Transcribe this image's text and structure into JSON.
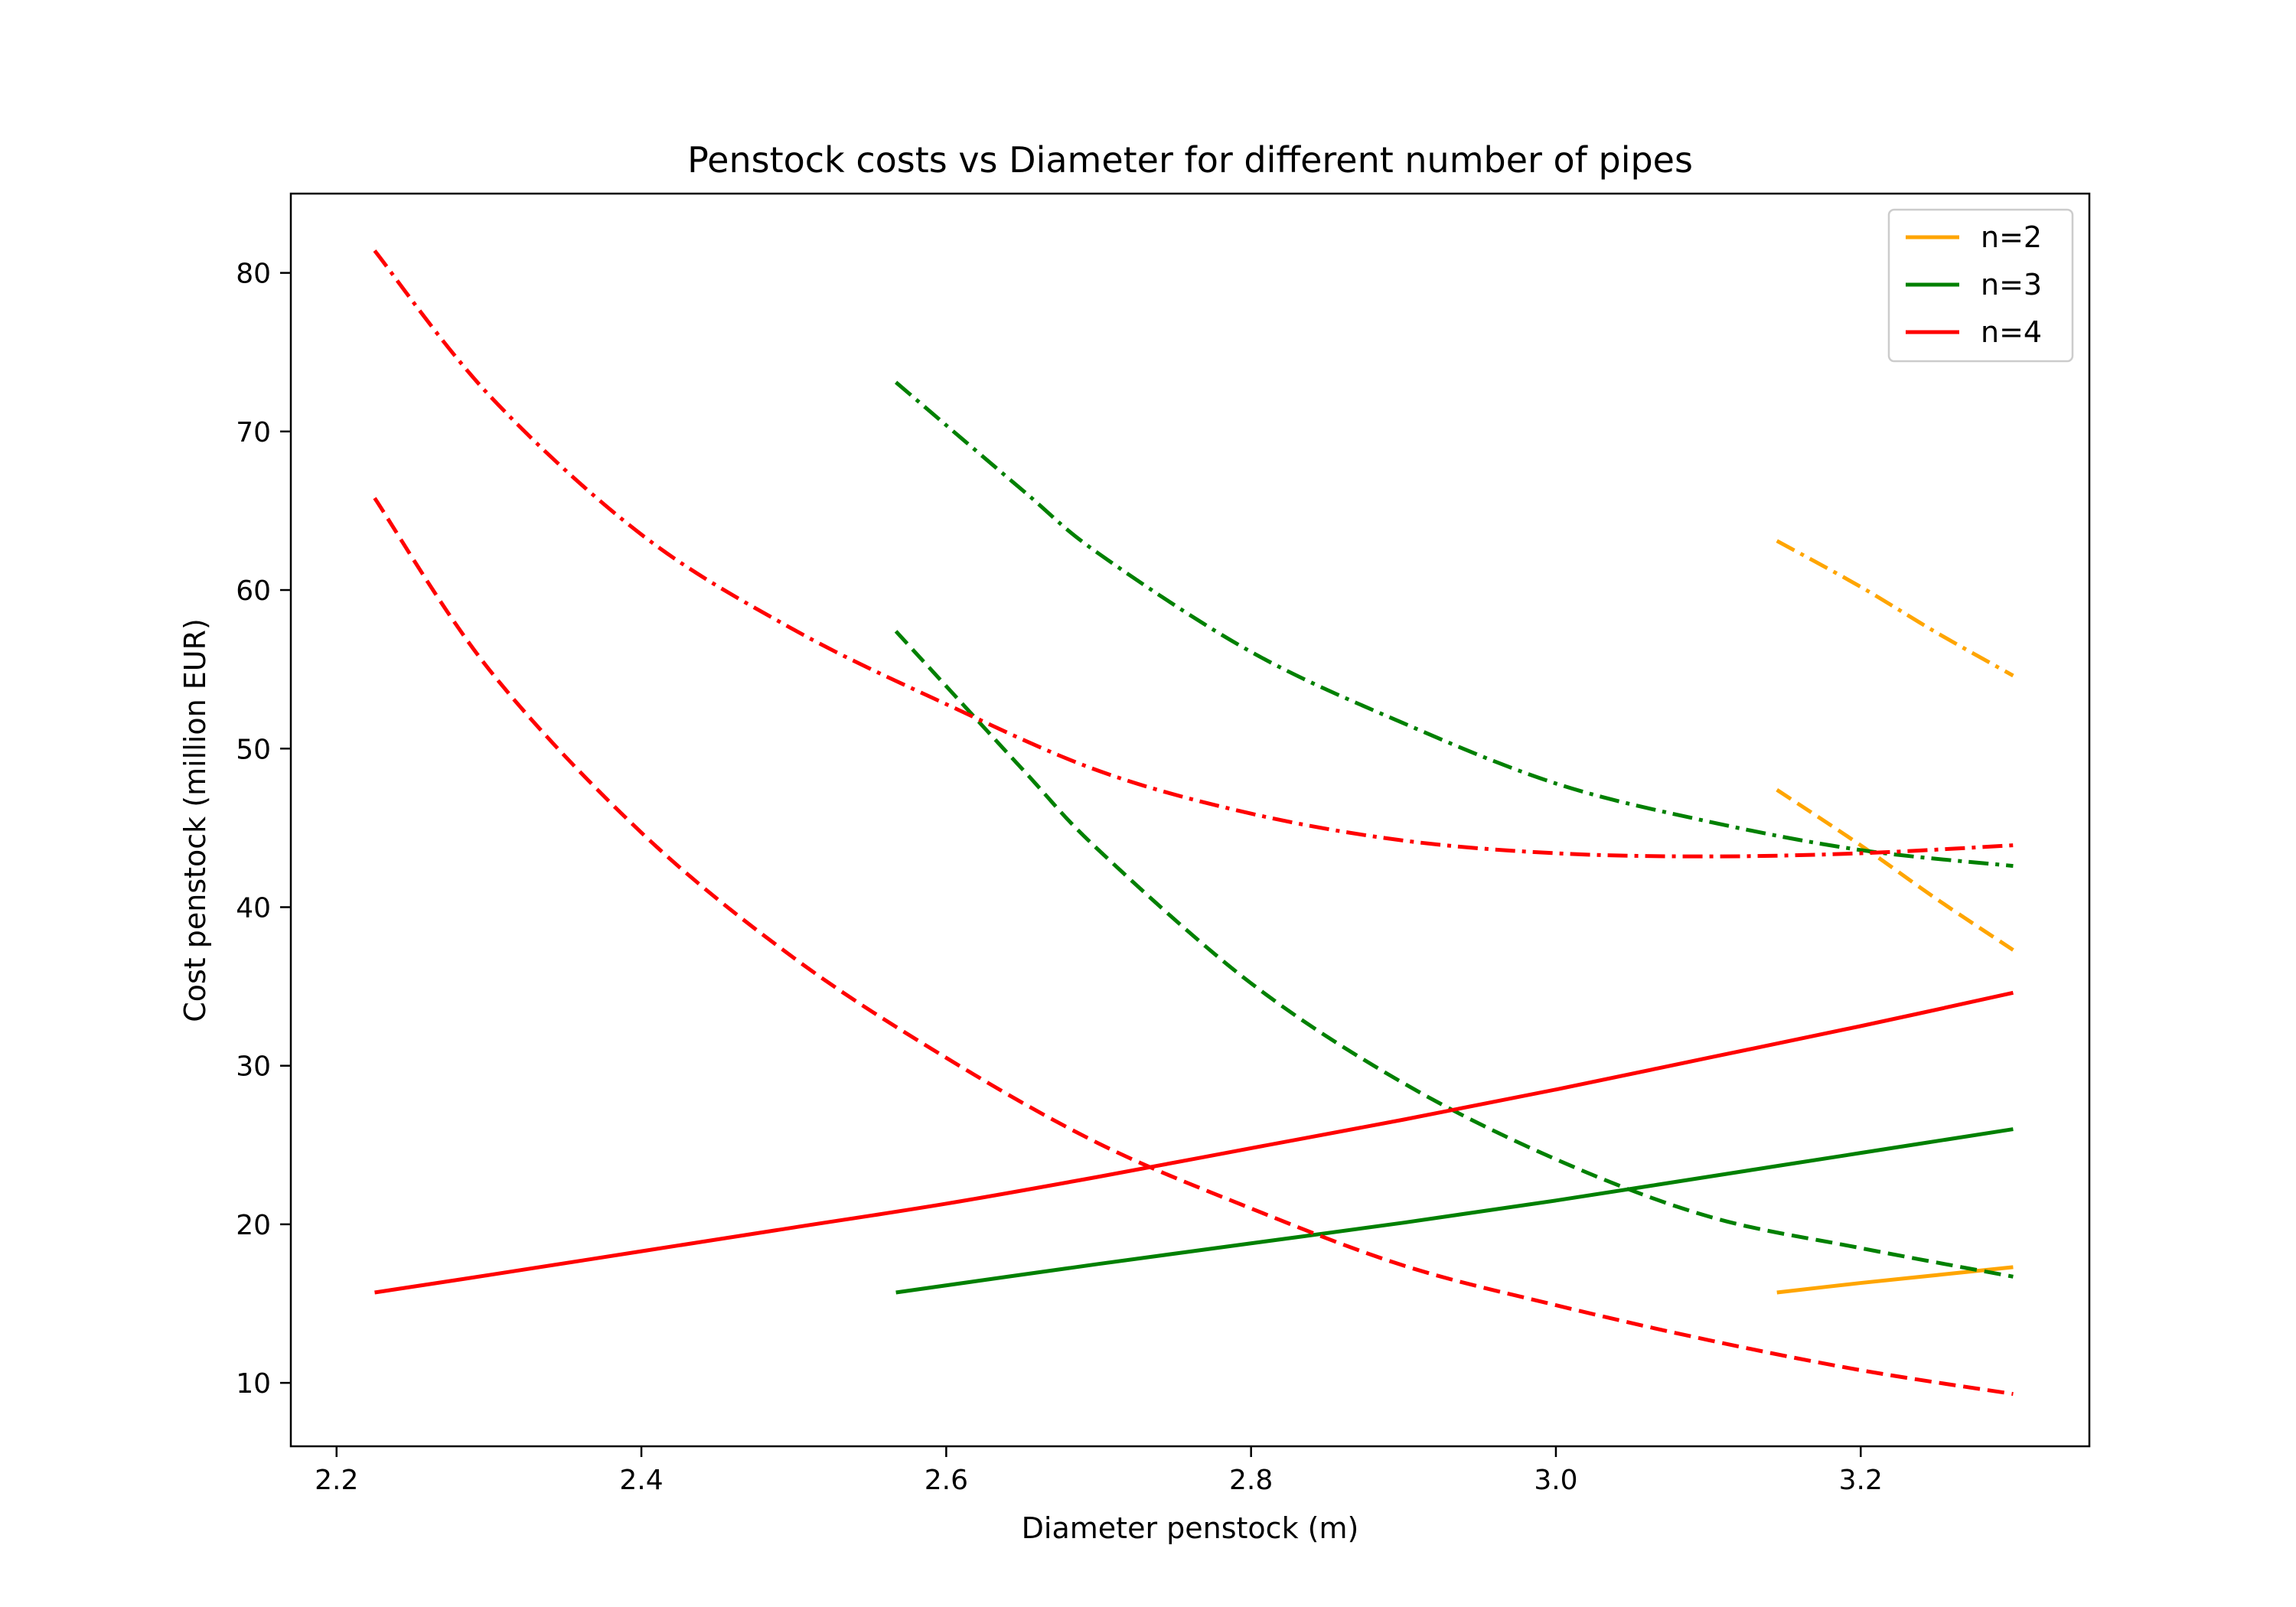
{
  "chart_data": {
    "type": "line",
    "title": "Penstock costs vs Diameter for different number of pipes",
    "xlabel": "Diameter penstock (m)",
    "ylabel": "Cost penstock (million EUR)",
    "xlim": [
      2.17,
      3.35
    ],
    "ylim": [
      6,
      85
    ],
    "xticks": [
      "2.2",
      "2.4",
      "2.6",
      "2.8",
      "3.0",
      "3.2"
    ],
    "yticks": [
      "10",
      "20",
      "30",
      "40",
      "50",
      "60",
      "70",
      "80"
    ],
    "grid": false,
    "legend_position": "top-right",
    "legend": [
      {
        "label": "n=2",
        "color": "#ffa500"
      },
      {
        "label": "n=3",
        "color": "#008000"
      },
      {
        "label": "n=4",
        "color": "#ff0000"
      }
    ],
    "series": [
      {
        "group": "n=2",
        "color": "#ffa500",
        "dash": "solid",
        "x": [
          3.145,
          3.2,
          3.25,
          3.3
        ],
        "y": [
          15.7,
          16.3,
          16.8,
          17.3
        ]
      },
      {
        "group": "n=2",
        "color": "#ffa500",
        "dash": "dashed",
        "x": [
          3.145,
          3.2,
          3.25,
          3.3
        ],
        "y": [
          47.4,
          43.9,
          40.5,
          37.3
        ]
      },
      {
        "group": "n=2",
        "color": "#ffa500",
        "dash": "dashdot",
        "x": [
          3.145,
          3.2,
          3.25,
          3.3
        ],
        "y": [
          63.1,
          60.2,
          57.3,
          54.6
        ]
      },
      {
        "group": "n=3",
        "color": "#008000",
        "dash": "solid",
        "x": [
          2.567,
          2.7,
          2.8,
          2.9,
          3.0,
          3.1,
          3.2,
          3.3
        ],
        "y": [
          15.7,
          17.5,
          18.8,
          20.1,
          21.5,
          23.0,
          24.5,
          26.0
        ]
      },
      {
        "group": "n=3",
        "color": "#008000",
        "dash": "dashed",
        "x": [
          2.567,
          2.65,
          2.7,
          2.8,
          2.9,
          3.0,
          3.1,
          3.2,
          3.3
        ],
        "y": [
          57.4,
          48.7,
          43.6,
          35.2,
          28.9,
          24.1,
          20.5,
          18.5,
          16.7
        ]
      },
      {
        "group": "n=3",
        "color": "#008000",
        "dash": "dashdot",
        "x": [
          2.567,
          2.65,
          2.7,
          2.8,
          2.9,
          3.0,
          3.1,
          3.2,
          3.3
        ],
        "y": [
          73.1,
          66.3,
          62.3,
          56.1,
          51.6,
          47.8,
          45.4,
          43.6,
          42.6
        ]
      },
      {
        "group": "n=4",
        "color": "#ff0000",
        "dash": "solid",
        "x": [
          2.225,
          2.3,
          2.4,
          2.5,
          2.6,
          2.7,
          2.8,
          2.9,
          3.0,
          3.1,
          3.2,
          3.3
        ],
        "y": [
          15.7,
          16.8,
          18.3,
          19.8,
          21.3,
          23.0,
          24.8,
          26.6,
          28.5,
          30.5,
          32.5,
          34.6
        ]
      },
      {
        "group": "n=4",
        "color": "#ff0000",
        "dash": "dashed",
        "x": [
          2.225,
          2.3,
          2.4,
          2.5,
          2.6,
          2.7,
          2.8,
          2.9,
          3.0,
          3.1,
          3.2,
          3.3
        ],
        "y": [
          65.8,
          55.0,
          44.7,
          36.8,
          30.5,
          25.1,
          21.0,
          17.4,
          14.9,
          12.7,
          10.8,
          9.3
        ]
      },
      {
        "group": "n=4",
        "color": "#ff0000",
        "dash": "dashdot",
        "x": [
          2.225,
          2.3,
          2.4,
          2.5,
          2.6,
          2.7,
          2.8,
          2.9,
          3.0,
          3.1,
          3.2,
          3.3
        ],
        "y": [
          81.4,
          72.3,
          63.5,
          57.5,
          52.8,
          48.6,
          45.9,
          44.2,
          43.4,
          43.2,
          43.4,
          43.9
        ]
      }
    ]
  }
}
